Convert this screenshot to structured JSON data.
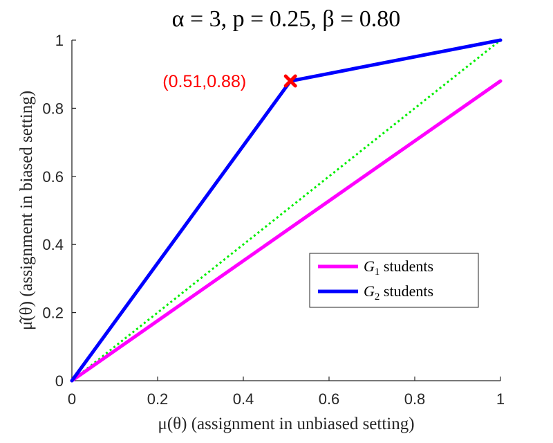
{
  "chart_data": {
    "type": "line",
    "title": "α = 3, p = 0.25, β = 0.80",
    "xlabel": "μ(θ) (assignment in unbiased setting)",
    "ylabel": "μ̂(θ) (assignment in biased setting)",
    "xlim": [
      0,
      1
    ],
    "ylim": [
      0,
      1
    ],
    "xticks": [
      "0",
      "0.2",
      "0.4",
      "0.6",
      "0.8",
      "1"
    ],
    "yticks": [
      "0",
      "0.2",
      "0.4",
      "0.6",
      "0.8",
      "1"
    ],
    "grid": false,
    "legend_position": "lower-right",
    "series": [
      {
        "name": "G1 students",
        "legend_main": "G",
        "legend_sub": "1",
        "legend_rest": " students",
        "color": "#ff00ff",
        "style": "solid",
        "x": [
          0,
          1
        ],
        "y": [
          0,
          0.88
        ]
      },
      {
        "name": "G2 students",
        "legend_main": "G",
        "legend_sub": "2",
        "legend_rest": " students",
        "color": "#0000ff",
        "style": "solid",
        "x": [
          0,
          0.51,
          1
        ],
        "y": [
          0,
          0.88,
          1
        ]
      },
      {
        "color": "#00ee00",
        "style": "dotted",
        "x": [
          0,
          1
        ],
        "y": [
          0,
          1
        ]
      }
    ],
    "annotations": [
      {
        "text": "(0.51,0.88)",
        "x": 0.51,
        "y": 0.88,
        "color": "#ff0000",
        "marker": "x"
      }
    ]
  }
}
